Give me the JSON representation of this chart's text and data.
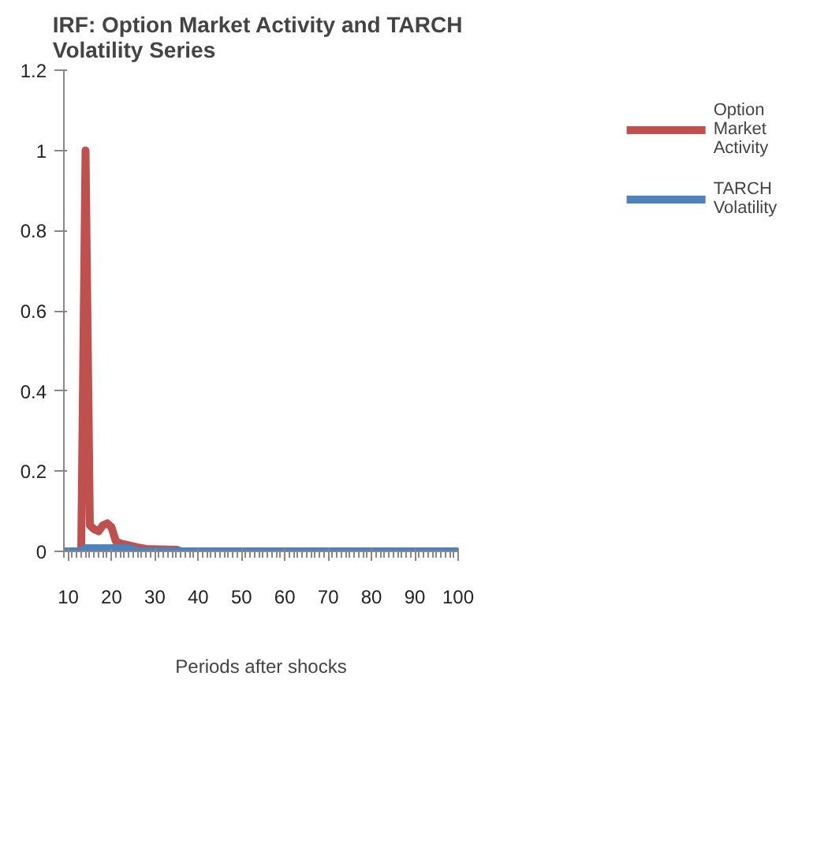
{
  "chart_data": {
    "type": "line",
    "title": "IRF: Option Market Activity and  TARCH Volatility Series",
    "xlabel": "Periods after shocks",
    "xlim": [
      9,
      100
    ],
    "xticks": [
      10,
      20,
      30,
      40,
      50,
      60,
      70,
      80,
      90,
      100
    ],
    "ylim": [
      0,
      1.2
    ],
    "yticks": [
      0,
      {
        "value": 0.2,
        "label": "0.2"
      },
      {
        "value": 0.4,
        "label": "0.4"
      },
      {
        "value": 0.6,
        "label": "0.6"
      },
      {
        "value": 0.8,
        "label": "0.8"
      },
      1,
      {
        "value": 1.2,
        "label": "1.2"
      }
    ],
    "grid": false,
    "legend": "right",
    "marker": "none",
    "line_style": "solid",
    "series": [
      {
        "name": "Option Market Activity",
        "color": "#c0504d",
        "x": [
          9,
          13,
          14,
          15,
          16,
          17,
          18,
          19,
          20,
          21,
          22,
          24,
          26,
          28,
          35,
          36,
          100
        ],
        "values": [
          0,
          0,
          1.0,
          0.065,
          0.055,
          0.05,
          0.065,
          0.07,
          0.06,
          0.025,
          0.02,
          0.015,
          0.01,
          0.006,
          0.004,
          0,
          0
        ]
      },
      {
        "name": "TARCH Volatility",
        "color": "#4f81bd",
        "x": [
          9,
          13,
          14,
          24,
          26,
          100
        ],
        "values": [
          0,
          0,
          0.008,
          0.008,
          0,
          0
        ]
      }
    ]
  }
}
